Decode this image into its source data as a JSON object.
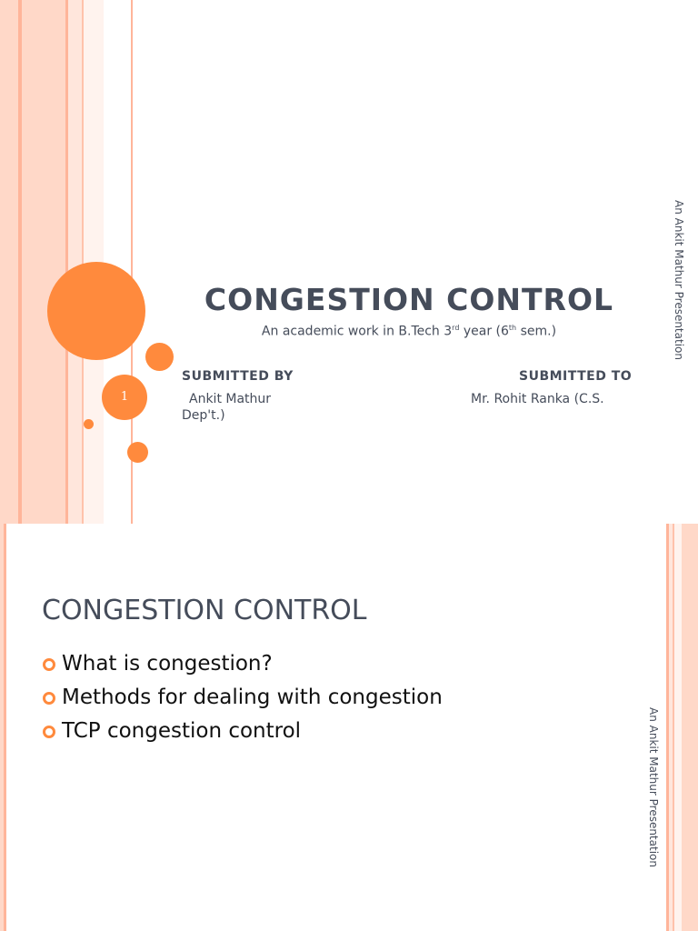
{
  "colors": {
    "accent": "#ff8a3d",
    "stripe_light": "#ffd8c8",
    "stripe_mid": "#ffb59a",
    "text": "#454c5a"
  },
  "slide1": {
    "title": "CONGESTION CONTROL",
    "subtitle": {
      "prefix": "An academic work in B.Tech 3",
      "sup1": "rd",
      "middle": " year (6",
      "sup2": "th",
      "suffix": " sem.)"
    },
    "submitted_by_label": "SUBMITTED BY",
    "submitted_to_label": "SUBMITTED TO",
    "submitted_by_line1": "Ankit Mathur",
    "submitted_to_line1": "Mr. Rohit Ranka (C.S.",
    "submitted_to_line2": "Dep't.)",
    "page_number": "1",
    "vertical_text": "An Ankit Mathur Presentation"
  },
  "slide2": {
    "title": "CONGESTION CONTROL",
    "bullets": [
      "What is congestion?",
      "Methods for dealing with congestion",
      "TCP congestion control"
    ],
    "vertical_text": "An Ankit Mathur Presentation"
  }
}
